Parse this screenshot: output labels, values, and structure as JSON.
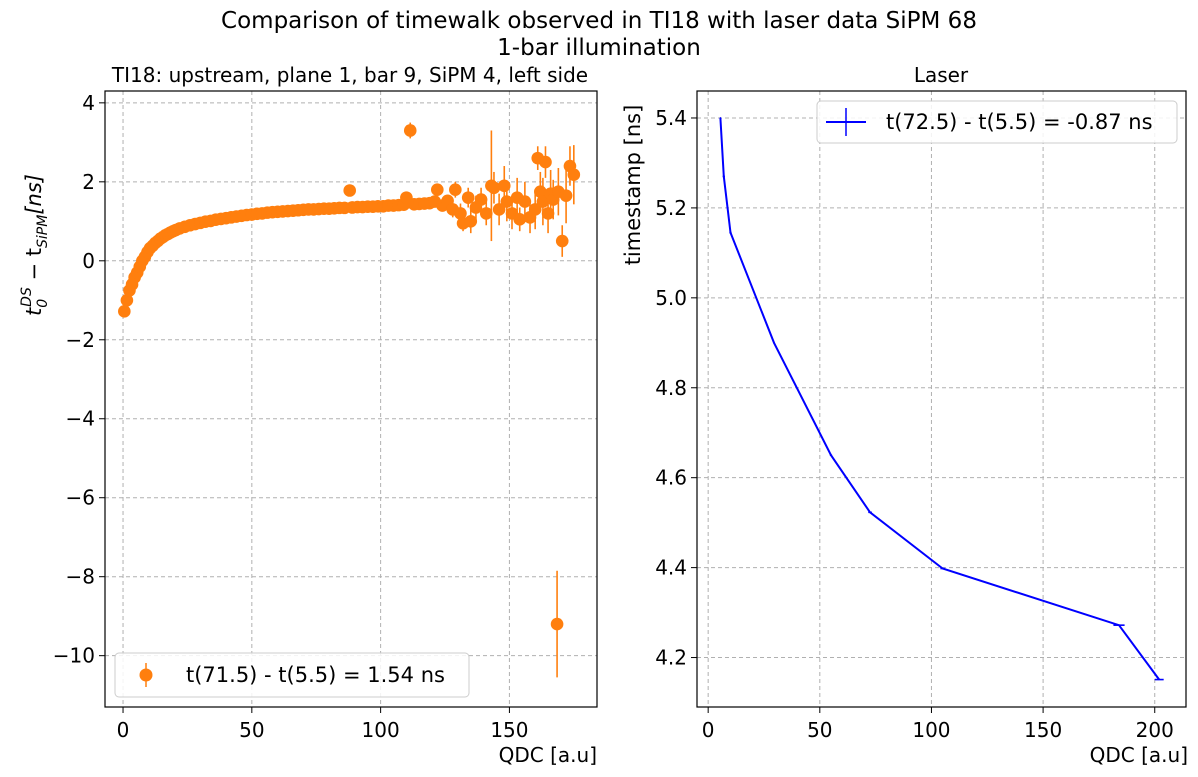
{
  "figure": {
    "title_line1": "Comparison of timewalk observed in TI18 with laser data SiPM 68",
    "title_line2": "1-bar illumination"
  },
  "chart_data": [
    {
      "type": "scatter",
      "title": "TI18: upstream, plane 1, bar 9, SiPM 4, left side",
      "xlabel": "QDC [a.u]",
      "ylabel_main": "t",
      "ylabel_sub": "0",
      "ylabel_sup": "DS",
      "ylabel_rest": " − t",
      "ylabel_sub2": "SiPM",
      "ylabel_tail": "[ns]",
      "xlim": [
        -7,
        184
      ],
      "ylim": [
        -11.3,
        4.3
      ],
      "xticks": [
        0,
        50,
        100,
        150
      ],
      "yticks": [
        -10,
        -8,
        -6,
        -4,
        -2,
        0,
        2,
        4
      ],
      "ytick_labels": [
        "−10",
        "−8",
        "−6",
        "−4",
        "−2",
        "0",
        "2",
        "4"
      ],
      "grid": true,
      "legend": {
        "position": "lower-left",
        "label": "t(71.5) - t(5.5) = 1.54 ns"
      },
      "color": "#ff7f0e",
      "series": [
        {
          "name": "t(71.5) - t(5.5) = 1.54 ns",
          "points": [
            [
              0.5,
              -1.28,
              0.05
            ],
            [
              1.5,
              -1.0,
              0.05
            ],
            [
              2.5,
              -0.75,
              0.05
            ],
            [
              3.5,
              -0.6,
              0.05
            ],
            [
              4.5,
              -0.42,
              0.05
            ],
            [
              5.5,
              -0.3,
              0.05
            ],
            [
              6.5,
              -0.15,
              0.05
            ],
            [
              7.5,
              0.0,
              0.05
            ],
            [
              8.5,
              0.1,
              0.05
            ],
            [
              9.5,
              0.22,
              0.05
            ],
            [
              10.5,
              0.32,
              0.05
            ],
            [
              11.5,
              0.38,
              0.05
            ],
            [
              12.5,
              0.45,
              0.05
            ],
            [
              13.5,
              0.5,
              0.05
            ],
            [
              14.5,
              0.56,
              0.05
            ],
            [
              15.5,
              0.6,
              0.05
            ],
            [
              16.5,
              0.65,
              0.05
            ],
            [
              17.5,
              0.68,
              0.05
            ],
            [
              18.5,
              0.72,
              0.05
            ],
            [
              19.5,
              0.75,
              0.05
            ],
            [
              20.5,
              0.78,
              0.05
            ],
            [
              22,
              0.82,
              0.05
            ],
            [
              24,
              0.86,
              0.05
            ],
            [
              26,
              0.9,
              0.05
            ],
            [
              28,
              0.93,
              0.05
            ],
            [
              30,
              0.96,
              0.05
            ],
            [
              32,
              0.99,
              0.05
            ],
            [
              34,
              1.01,
              0.05
            ],
            [
              36,
              1.04,
              0.05
            ],
            [
              38,
              1.06,
              0.05
            ],
            [
              40,
              1.08,
              0.05
            ],
            [
              42,
              1.1,
              0.05
            ],
            [
              44,
              1.12,
              0.05
            ],
            [
              46,
              1.14,
              0.05
            ],
            [
              48,
              1.16,
              0.05
            ],
            [
              50,
              1.17,
              0.05
            ],
            [
              52,
              1.19,
              0.05
            ],
            [
              54,
              1.2,
              0.05
            ],
            [
              56,
              1.22,
              0.05
            ],
            [
              58,
              1.23,
              0.05
            ],
            [
              60,
              1.24,
              0.05
            ],
            [
              62,
              1.25,
              0.05
            ],
            [
              64,
              1.26,
              0.05
            ],
            [
              66,
              1.27,
              0.05
            ],
            [
              68,
              1.28,
              0.05
            ],
            [
              70,
              1.29,
              0.05
            ],
            [
              72,
              1.3,
              0.05
            ],
            [
              74,
              1.3,
              0.05
            ],
            [
              76,
              1.31,
              0.05
            ],
            [
              78,
              1.32,
              0.05
            ],
            [
              80,
              1.32,
              0.05
            ],
            [
              82,
              1.33,
              0.05
            ],
            [
              84,
              1.34,
              0.05
            ],
            [
              86,
              1.34,
              0.05
            ],
            [
              88,
              1.78,
              0.08
            ],
            [
              89,
              1.35,
              0.05
            ],
            [
              91,
              1.36,
              0.06
            ],
            [
              93,
              1.36,
              0.06
            ],
            [
              95,
              1.37,
              0.06
            ],
            [
              97,
              1.37,
              0.07
            ],
            [
              99,
              1.38,
              0.07
            ],
            [
              101,
              1.38,
              0.07
            ],
            [
              103,
              1.4,
              0.08
            ],
            [
              105,
              1.4,
              0.08
            ],
            [
              107,
              1.41,
              0.08
            ],
            [
              109,
              1.42,
              0.09
            ],
            [
              110,
              1.6,
              0.1
            ],
            [
              111.5,
              3.3,
              0.2
            ],
            [
              113,
              1.43,
              0.1
            ],
            [
              115,
              1.44,
              0.1
            ],
            [
              117,
              1.45,
              0.12
            ],
            [
              119,
              1.46,
              0.12
            ],
            [
              121,
              1.5,
              0.13
            ],
            [
              122,
              1.8,
              0.15
            ],
            [
              124,
              1.4,
              0.15
            ],
            [
              126,
              1.52,
              0.15
            ],
            [
              128,
              1.3,
              0.2
            ],
            [
              129,
              1.8,
              0.2
            ],
            [
              131,
              1.2,
              0.25
            ],
            [
              132,
              0.95,
              0.2
            ],
            [
              134,
              1.6,
              0.25
            ],
            [
              135,
              1.0,
              0.3
            ],
            [
              137,
              1.35,
              0.3
            ],
            [
              139,
              1.55,
              0.3
            ],
            [
              141,
              1.2,
              0.3
            ],
            [
              143,
              1.9,
              1.4
            ],
            [
              144,
              1.85,
              0.4
            ],
            [
              146,
              1.3,
              0.4
            ],
            [
              148,
              1.9,
              0.5
            ],
            [
              149,
              1.5,
              0.5
            ],
            [
              151,
              1.2,
              0.4
            ],
            [
              153,
              1.6,
              0.5
            ],
            [
              154,
              1.05,
              0.3
            ],
            [
              156,
              1.5,
              0.5
            ],
            [
              158,
              1.1,
              0.4
            ],
            [
              160,
              1.3,
              0.5
            ],
            [
              161,
              2.6,
              0.3
            ],
            [
              162,
              1.75,
              0.5
            ],
            [
              163,
              1.5,
              0.6
            ],
            [
              164,
              2.5,
              0.4
            ],
            [
              165,
              1.2,
              0.5
            ],
            [
              166,
              1.7,
              0.6
            ],
            [
              167,
              1.55,
              0.5
            ],
            [
              168.5,
              -9.2,
              1.35
            ],
            [
              169,
              1.75,
              0.6
            ],
            [
              170.5,
              0.5,
              0.4
            ],
            [
              172,
              1.65,
              0.7
            ],
            [
              173.5,
              2.4,
              0.5
            ],
            [
              175,
              2.18,
              0.75
            ]
          ]
        }
      ]
    },
    {
      "type": "line",
      "title": "Laser",
      "xlabel": "QDC [a.u]",
      "ylabel": "timestamp [ns]",
      "xlim": [
        -5,
        214
      ],
      "ylim": [
        4.09,
        5.46
      ],
      "xticks": [
        0,
        50,
        100,
        150,
        200
      ],
      "yticks": [
        4.2,
        4.4,
        4.6,
        4.8,
        5.0,
        5.2,
        5.4
      ],
      "ytick_labels": [
        "4.2",
        "4.4",
        "4.6",
        "4.8",
        "5.0",
        "5.2",
        "5.4"
      ],
      "grid": true,
      "legend": {
        "position": "top-right",
        "label": "t(72.5) - t(5.5) = -0.87 ns"
      },
      "color": "#0000ff",
      "series": [
        {
          "name": "t(72.5) - t(5.5) = -0.87 ns",
          "points": [
            [
              5.5,
              5.4,
              0.3
            ],
            [
              7,
              5.27,
              0.5
            ],
            [
              10,
              5.145,
              0.5
            ],
            [
              29.5,
              4.9,
              0.3
            ],
            [
              55,
              4.65,
              0.5
            ],
            [
              72.5,
              4.523,
              0.8
            ],
            [
              105,
              4.398,
              1.0
            ],
            [
              184,
              4.272,
              2.5
            ],
            [
              202,
              4.151,
              2.0
            ]
          ]
        }
      ]
    }
  ]
}
